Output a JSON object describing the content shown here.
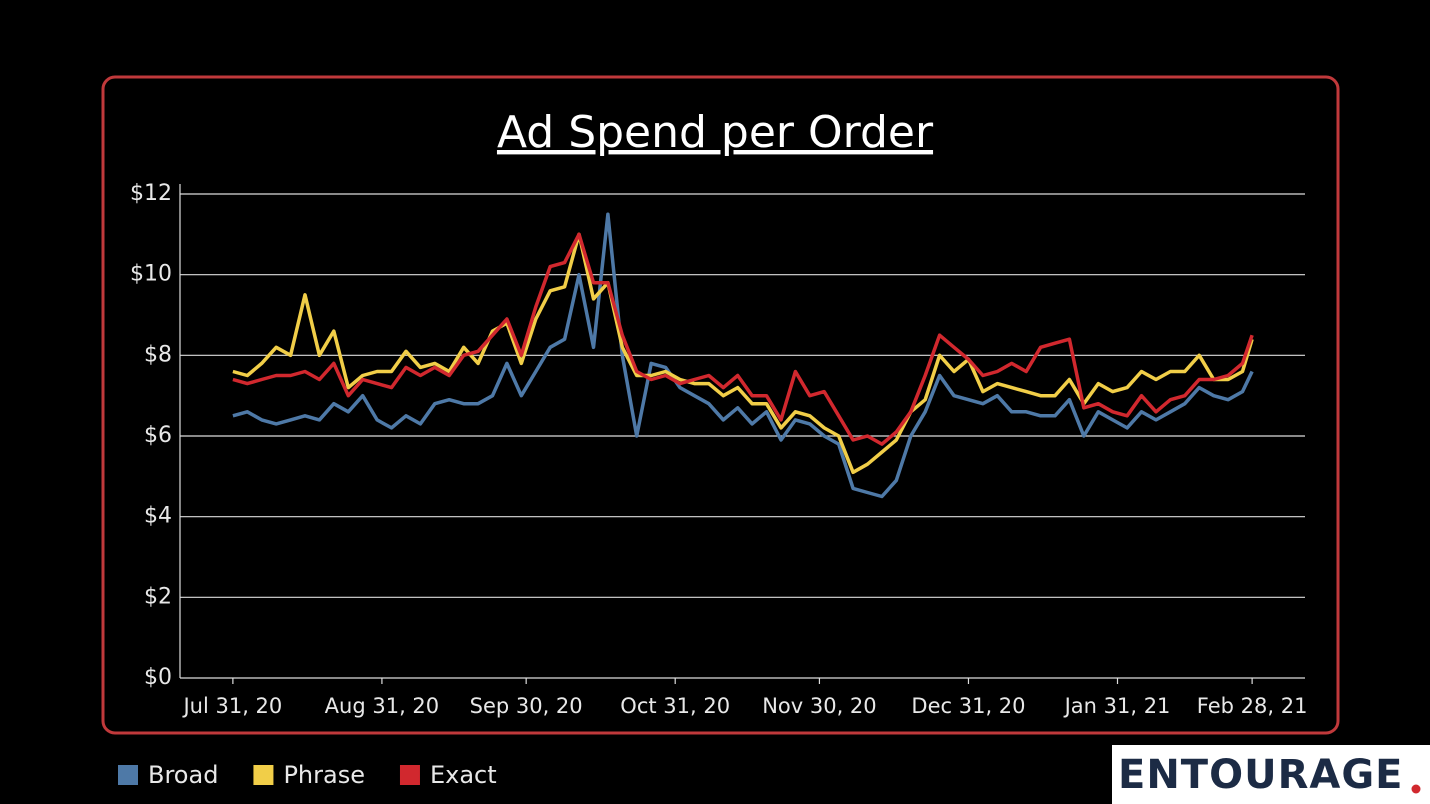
{
  "chart_data": {
    "type": "line",
    "title": "Ad Spend per Order",
    "x": [
      "2020-07-31",
      "2020-08-03",
      "2020-08-06",
      "2020-08-09",
      "2020-08-12",
      "2020-08-15",
      "2020-08-18",
      "2020-08-21",
      "2020-08-24",
      "2020-08-27",
      "2020-08-30",
      "2020-09-02",
      "2020-09-05",
      "2020-09-08",
      "2020-09-11",
      "2020-09-14",
      "2020-09-17",
      "2020-09-20",
      "2020-09-23",
      "2020-09-26",
      "2020-09-29",
      "2020-10-02",
      "2020-10-05",
      "2020-10-08",
      "2020-10-11",
      "2020-10-14",
      "2020-10-17",
      "2020-10-20",
      "2020-10-23",
      "2020-10-26",
      "2020-10-29",
      "2020-11-01",
      "2020-11-04",
      "2020-11-07",
      "2020-11-10",
      "2020-11-13",
      "2020-11-16",
      "2020-11-19",
      "2020-11-22",
      "2020-11-25",
      "2020-11-28",
      "2020-12-01",
      "2020-12-04",
      "2020-12-07",
      "2020-12-10",
      "2020-12-13",
      "2020-12-16",
      "2020-12-19",
      "2020-12-22",
      "2020-12-25",
      "2020-12-28",
      "2020-12-31",
      "2021-01-03",
      "2021-01-06",
      "2021-01-09",
      "2021-01-12",
      "2021-01-15",
      "2021-01-18",
      "2021-01-21",
      "2021-01-24",
      "2021-01-27",
      "2021-01-30",
      "2021-02-02",
      "2021-02-05",
      "2021-02-08",
      "2021-02-11",
      "2021-02-14",
      "2021-02-17",
      "2021-02-20",
      "2021-02-23",
      "2021-02-26",
      "2021-02-28"
    ],
    "series": [
      {
        "name": "Broad",
        "color": "#4e79a7",
        "values": [
          6.5,
          6.6,
          6.4,
          6.3,
          6.4,
          6.5,
          6.4,
          6.8,
          6.6,
          7.0,
          6.4,
          6.2,
          6.5,
          6.3,
          6.8,
          6.9,
          6.8,
          6.8,
          7.0,
          7.8,
          7.0,
          7.6,
          8.2,
          8.4,
          10.0,
          8.2,
          11.5,
          8.0,
          6.0,
          7.8,
          7.7,
          7.2,
          7.0,
          6.8,
          6.4,
          6.7,
          6.3,
          6.6,
          5.9,
          6.4,
          6.3,
          6.0,
          5.8,
          4.7,
          4.6,
          4.5,
          4.9,
          6.0,
          6.6,
          7.5,
          7.0,
          6.9,
          6.8,
          7.0,
          6.6,
          6.6,
          6.5,
          6.5,
          6.9,
          6.0,
          6.6,
          6.4,
          6.2,
          6.6,
          6.4,
          6.6,
          6.8,
          7.2,
          7.0,
          6.9,
          7.1,
          7.6
        ]
      },
      {
        "name": "Phrase",
        "color": "#f1ce48",
        "values": [
          7.6,
          7.5,
          7.8,
          8.2,
          8.0,
          9.5,
          8.0,
          8.6,
          7.2,
          7.5,
          7.6,
          7.6,
          8.1,
          7.7,
          7.8,
          7.6,
          8.2,
          7.8,
          8.6,
          8.8,
          7.8,
          8.9,
          9.6,
          9.7,
          11.0,
          9.4,
          9.8,
          8.2,
          7.5,
          7.5,
          7.6,
          7.4,
          7.3,
          7.3,
          7.0,
          7.2,
          6.8,
          6.8,
          6.2,
          6.6,
          6.5,
          6.2,
          6.0,
          5.1,
          5.3,
          5.6,
          5.9,
          6.6,
          6.9,
          8.0,
          7.6,
          7.9,
          7.1,
          7.3,
          7.2,
          7.1,
          7.0,
          7.0,
          7.4,
          6.8,
          7.3,
          7.1,
          7.2,
          7.6,
          7.4,
          7.6,
          7.6,
          8.0,
          7.4,
          7.4,
          7.6,
          8.4
        ]
      },
      {
        "name": "Exact",
        "color": "#d1282e",
        "values": [
          7.4,
          7.3,
          7.4,
          7.5,
          7.5,
          7.6,
          7.4,
          7.8,
          7.0,
          7.4,
          7.3,
          7.2,
          7.7,
          7.5,
          7.7,
          7.5,
          8.0,
          8.1,
          8.5,
          8.9,
          8.0,
          9.2,
          10.2,
          10.3,
          11.0,
          9.8,
          9.8,
          8.5,
          7.6,
          7.4,
          7.5,
          7.3,
          7.4,
          7.5,
          7.2,
          7.5,
          7.0,
          7.0,
          6.4,
          7.6,
          7.0,
          7.1,
          6.5,
          5.9,
          6.0,
          5.8,
          6.1,
          6.6,
          7.5,
          8.5,
          8.2,
          7.9,
          7.5,
          7.6,
          7.8,
          7.6,
          8.2,
          8.3,
          8.4,
          6.7,
          6.8,
          6.6,
          6.5,
          7.0,
          6.6,
          6.9,
          7.0,
          7.4,
          7.4,
          7.5,
          7.8,
          8.5
        ]
      }
    ],
    "xlim": [
      "2020-07-20",
      "2021-03-11"
    ],
    "xticks": [
      {
        "value": "2020-07-31",
        "label": "Jul 31, 20"
      },
      {
        "value": "2020-08-31",
        "label": "Aug 31, 20"
      },
      {
        "value": "2020-09-30",
        "label": "Sep 30, 20"
      },
      {
        "value": "2020-10-31",
        "label": "Oct 31, 20"
      },
      {
        "value": "2020-11-30",
        "label": "Nov 30, 20"
      },
      {
        "value": "2020-12-31",
        "label": "Dec 31, 20"
      },
      {
        "value": "2021-01-31",
        "label": "Jan 31, 21"
      },
      {
        "value": "2021-02-28",
        "label": "Feb 28, 21"
      }
    ],
    "ylim": [
      0,
      12
    ],
    "yticks": [
      {
        "value": 0,
        "label": "$0"
      },
      {
        "value": 2,
        "label": "$2"
      },
      {
        "value": 4,
        "label": "$4"
      },
      {
        "value": 6,
        "label": "$6"
      },
      {
        "value": 8,
        "label": "$8"
      },
      {
        "value": 10,
        "label": "$10"
      },
      {
        "value": 12,
        "label": "$12"
      }
    ],
    "grid": true,
    "legend": "bottom-left"
  },
  "logo": "ENTOURAGE"
}
